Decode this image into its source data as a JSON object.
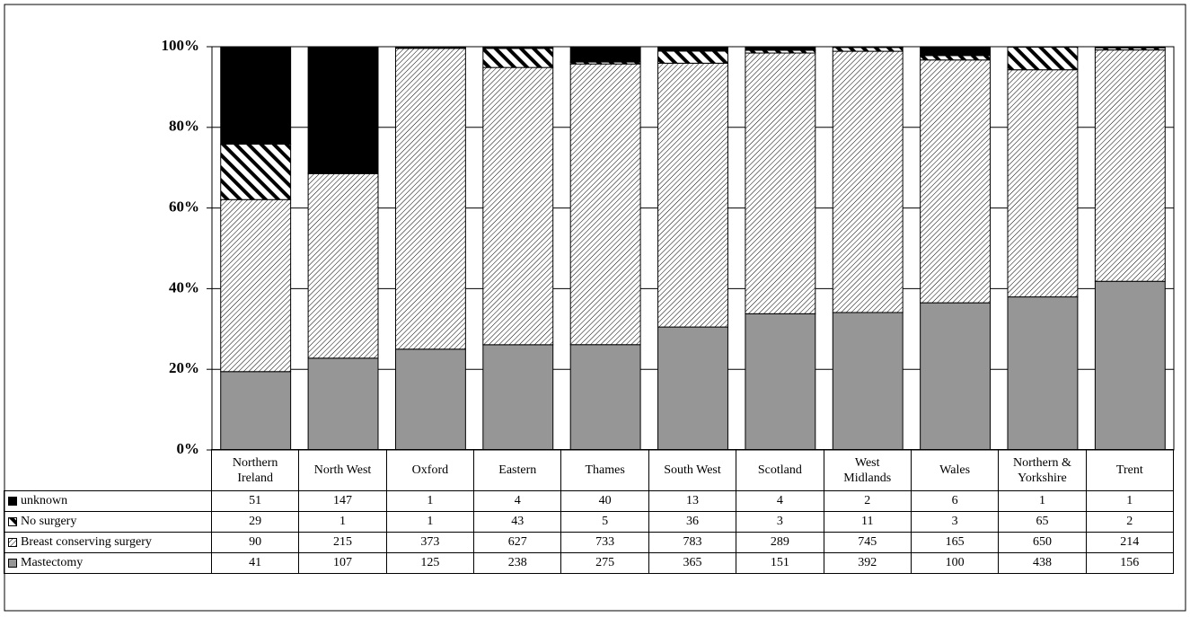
{
  "chart_data": {
    "type": "bar",
    "stacking": "percent",
    "categories": [
      "Northern Ireland",
      "North West",
      "Oxford",
      "Eastern",
      "Thames",
      "South West",
      "Scotland",
      "West Midlands",
      "Wales",
      "Northern & Yorkshire",
      "Trent"
    ],
    "series": [
      {
        "name": "unknown",
        "color": "#000000",
        "pattern": "solid",
        "values": [
          51,
          147,
          1,
          4,
          40,
          13,
          4,
          2,
          6,
          1,
          1
        ]
      },
      {
        "name": "No surgery",
        "color": "#000000",
        "pattern": "wide-hatch",
        "values": [
          29,
          1,
          1,
          43,
          5,
          36,
          3,
          11,
          3,
          65,
          2
        ]
      },
      {
        "name": "Breast conserving surgery",
        "color": "#000000",
        "pattern": "fine-hatch",
        "values": [
          90,
          215,
          373,
          627,
          733,
          783,
          289,
          745,
          165,
          650,
          214
        ]
      },
      {
        "name": "Mastectomy",
        "color": "#969696",
        "pattern": "solid",
        "values": [
          41,
          107,
          125,
          238,
          275,
          365,
          151,
          392,
          100,
          438,
          156
        ]
      }
    ],
    "ylim": [
      0,
      100
    ],
    "yticks": [
      {
        "value": 0,
        "label": "0%"
      },
      {
        "value": 20,
        "label": "20%"
      },
      {
        "value": 40,
        "label": "40%"
      },
      {
        "value": 60,
        "label": "60%"
      },
      {
        "value": 80,
        "label": "80%"
      },
      {
        "value": 100,
        "label": "100%"
      }
    ],
    "grid": true
  }
}
